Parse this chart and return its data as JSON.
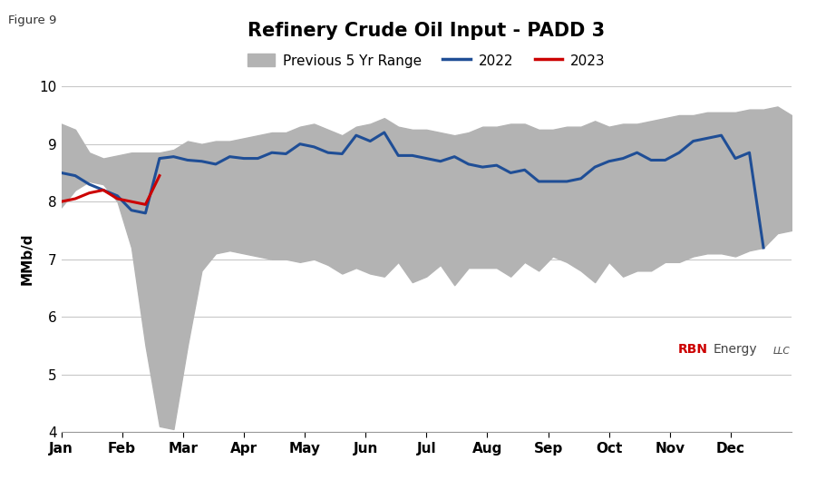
{
  "title": "Refinery Crude Oil Input - PADD 3",
  "figure_label": "Figure 9",
  "ylabel": "MMb/d",
  "ylim": [
    4,
    10
  ],
  "yticks": [
    4,
    5,
    6,
    7,
    8,
    9,
    10
  ],
  "months": [
    "Jan",
    "Feb",
    "Mar",
    "Apr",
    "May",
    "Jun",
    "Jul",
    "Aug",
    "Sep",
    "Oct",
    "Nov",
    "Dec"
  ],
  "n_points": 53,
  "range_upper": [
    9.35,
    9.25,
    8.85,
    8.75,
    8.8,
    8.85,
    8.85,
    8.85,
    8.9,
    9.05,
    9.0,
    9.05,
    9.05,
    9.1,
    9.15,
    9.2,
    9.2,
    9.3,
    9.35,
    9.25,
    9.15,
    9.3,
    9.35,
    9.45,
    9.3,
    9.25,
    9.25,
    9.2,
    9.15,
    9.2,
    9.3,
    9.3,
    9.35,
    9.35,
    9.25,
    9.25,
    9.3,
    9.3,
    9.4,
    9.3,
    9.35,
    9.35,
    9.4,
    9.45,
    9.5,
    9.5,
    9.55,
    9.55,
    9.55,
    9.6,
    9.6,
    9.65,
    9.5
  ],
  "range_lower": [
    7.9,
    8.2,
    8.35,
    8.3,
    8.0,
    7.2,
    5.5,
    4.1,
    4.05,
    5.5,
    6.8,
    7.1,
    7.15,
    7.1,
    7.05,
    7.0,
    7.0,
    6.95,
    7.0,
    6.9,
    6.75,
    6.85,
    6.75,
    6.7,
    6.95,
    6.6,
    6.7,
    6.9,
    6.55,
    6.85,
    6.85,
    6.85,
    6.7,
    6.95,
    6.8,
    7.05,
    6.95,
    6.8,
    6.6,
    6.95,
    6.7,
    6.8,
    6.8,
    6.95,
    6.95,
    7.05,
    7.1,
    7.1,
    7.05,
    7.15,
    7.2,
    7.45,
    7.5
  ],
  "line_2022": [
    8.5,
    8.45,
    8.3,
    8.2,
    8.1,
    7.85,
    7.8,
    8.75,
    8.78,
    8.72,
    8.7,
    8.65,
    8.78,
    8.75,
    8.75,
    8.85,
    8.83,
    9.0,
    8.95,
    8.85,
    8.83,
    9.15,
    9.05,
    9.2,
    8.8,
    8.8,
    8.75,
    8.7,
    8.78,
    8.65,
    8.6,
    8.63,
    8.5,
    8.55,
    8.35,
    8.35,
    8.35,
    8.4,
    8.6,
    8.7,
    8.75,
    8.85,
    8.72,
    8.72,
    8.85,
    9.05,
    9.1,
    9.15,
    8.75,
    8.85,
    7.2,
    null,
    null
  ],
  "line_2023": [
    8.0,
    8.05,
    8.15,
    8.2,
    8.05,
    8.0,
    7.95,
    8.45,
    null,
    null,
    null,
    null,
    null,
    null,
    null,
    null,
    null,
    null,
    null,
    null,
    null,
    null,
    null,
    null,
    null,
    null,
    null,
    null,
    null,
    null,
    null,
    null,
    null,
    null,
    null,
    null,
    null,
    null,
    null,
    null,
    null,
    null,
    null,
    null,
    null,
    null,
    null,
    null,
    null,
    null,
    null,
    null,
    null
  ],
  "range_color": "#b3b3b3",
  "line_2022_color": "#1f4e96",
  "line_2023_color": "#cc0000",
  "background_color": "#ffffff",
  "grid_color": "#c8c8c8",
  "title_fontsize": 15,
  "label_fontsize": 11,
  "tick_fontsize": 11,
  "legend_fontsize": 11
}
